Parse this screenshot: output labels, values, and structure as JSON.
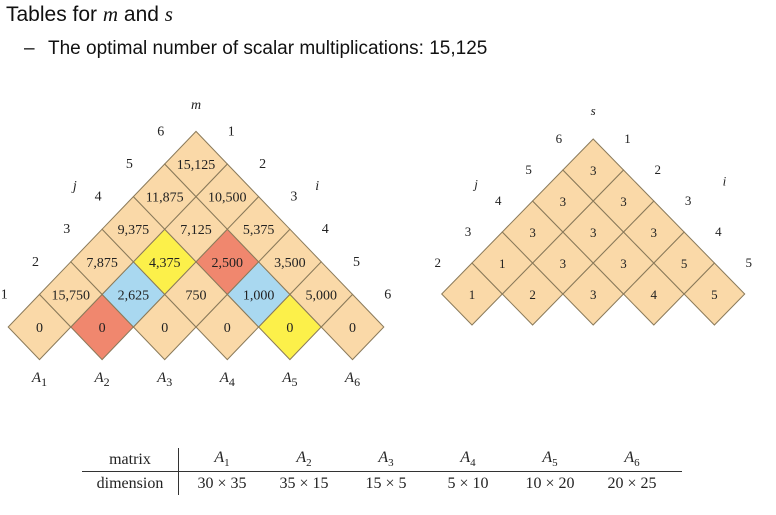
{
  "header": {
    "title_prefix": "Tables for ",
    "title_m": "m",
    "title_and": " and ",
    "title_s": "s",
    "subtitle_dash": "–",
    "subtitle": "The optimal number of scalar multiplications: 15,125"
  },
  "m_table": {
    "label": "m",
    "i_label": "i",
    "j_label": "j",
    "colors": {
      "default": "#fad9a8",
      "red": "#f0876e",
      "blue": "#a9d8f0",
      "yellow": "#fcf04a",
      "stroke": "#8a7a5a"
    },
    "cells": [
      {
        "i": 1,
        "j": 1,
        "value": "0",
        "color": "default"
      },
      {
        "i": 2,
        "j": 2,
        "value": "0",
        "color": "red"
      },
      {
        "i": 3,
        "j": 3,
        "value": "0",
        "color": "default"
      },
      {
        "i": 4,
        "j": 4,
        "value": "0",
        "color": "default"
      },
      {
        "i": 5,
        "j": 5,
        "value": "0",
        "color": "yellow"
      },
      {
        "i": 6,
        "j": 6,
        "value": "0",
        "color": "default"
      },
      {
        "i": 1,
        "j": 2,
        "value": "15,750",
        "color": "default"
      },
      {
        "i": 2,
        "j": 3,
        "value": "2,625",
        "color": "blue"
      },
      {
        "i": 3,
        "j": 4,
        "value": "750",
        "color": "default"
      },
      {
        "i": 4,
        "j": 5,
        "value": "1,000",
        "color": "blue"
      },
      {
        "i": 5,
        "j": 6,
        "value": "5,000",
        "color": "default"
      },
      {
        "i": 1,
        "j": 3,
        "value": "7,875",
        "color": "default"
      },
      {
        "i": 2,
        "j": 4,
        "value": "4,375",
        "color": "yellow"
      },
      {
        "i": 3,
        "j": 5,
        "value": "2,500",
        "color": "red"
      },
      {
        "i": 4,
        "j": 6,
        "value": "3,500",
        "color": "default"
      },
      {
        "i": 1,
        "j": 4,
        "value": "9,375",
        "color": "default"
      },
      {
        "i": 2,
        "j": 5,
        "value": "7,125",
        "color": "default"
      },
      {
        "i": 3,
        "j": 6,
        "value": "5,375",
        "color": "default"
      },
      {
        "i": 1,
        "j": 5,
        "value": "11,875",
        "color": "default"
      },
      {
        "i": 2,
        "j": 6,
        "value": "10,500",
        "color": "default"
      },
      {
        "i": 1,
        "j": 6,
        "value": "15,125",
        "color": "default"
      }
    ],
    "j_axis": [
      "1",
      "2",
      "3",
      "4",
      "5",
      "6"
    ],
    "i_axis": [
      "1",
      "2",
      "3",
      "4",
      "5",
      "6"
    ],
    "matrix_labels": [
      "A1",
      "A2",
      "A3",
      "A4",
      "A5",
      "A6"
    ]
  },
  "s_table": {
    "label": "s",
    "i_label": "i",
    "j_label": "j",
    "cells": [
      {
        "i": 1,
        "j": 2,
        "value": "1"
      },
      {
        "i": 2,
        "j": 3,
        "value": "2"
      },
      {
        "i": 3,
        "j": 4,
        "value": "3"
      },
      {
        "i": 4,
        "j": 5,
        "value": "4"
      },
      {
        "i": 5,
        "j": 6,
        "value": "5"
      },
      {
        "i": 1,
        "j": 3,
        "value": "1"
      },
      {
        "i": 2,
        "j": 4,
        "value": "3"
      },
      {
        "i": 3,
        "j": 5,
        "value": "3"
      },
      {
        "i": 4,
        "j": 6,
        "value": "5"
      },
      {
        "i": 1,
        "j": 4,
        "value": "3"
      },
      {
        "i": 2,
        "j": 5,
        "value": "3"
      },
      {
        "i": 3,
        "j": 6,
        "value": "3"
      },
      {
        "i": 1,
        "j": 5,
        "value": "3"
      },
      {
        "i": 2,
        "j": 6,
        "value": "3"
      },
      {
        "i": 1,
        "j": 6,
        "value": "3"
      }
    ],
    "j_axis": [
      "2",
      "3",
      "4",
      "5",
      "6"
    ],
    "i_axis": [
      "1",
      "2",
      "3",
      "4",
      "5"
    ]
  },
  "dimension_table": {
    "row1_head": "matrix",
    "row2_head": "dimension",
    "matrices": [
      "A1",
      "A2",
      "A3",
      "A4",
      "A5",
      "A6"
    ],
    "dimensions": [
      "30 × 35",
      "35 × 15",
      "15 × 5",
      "5 × 10",
      "10 × 20",
      "20 × 25"
    ]
  }
}
